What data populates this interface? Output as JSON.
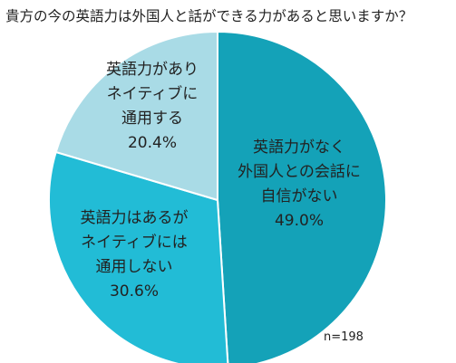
{
  "chart_data": {
    "type": "pie",
    "title": "貴方の今の英語力は外国人と話ができる力があると思いますか？",
    "note": "n=198",
    "slices": [
      {
        "label_lines": [
          "英語力がなく",
          "外国人との会話に",
          "自信がない"
        ],
        "value": 49.0,
        "value_label": "49.0%",
        "color": "#14a2b8",
        "text_color": "#ffffff"
      },
      {
        "label_lines": [
          "英語力はあるが",
          "ネイティブには",
          "通用しない"
        ],
        "value": 30.6,
        "value_label": "30.6%",
        "color": "#22bcd6",
        "text_color": "#ffffff"
      },
      {
        "label_lines": [
          "英語力があり",
          "ネイティブに",
          "通用する"
        ],
        "value": 20.4,
        "value_label": "20.4%",
        "color": "#a9dbe6",
        "text_color": "#222222"
      }
    ]
  }
}
